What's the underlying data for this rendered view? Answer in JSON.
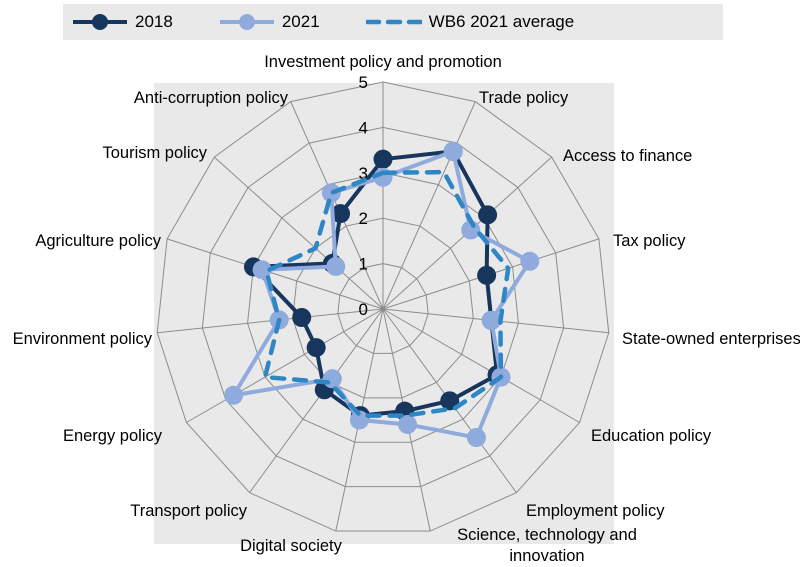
{
  "chart_data": {
    "type": "radar",
    "title": "",
    "scale": {
      "min": 0,
      "max": 5,
      "ring_step": 1,
      "ring_labels": [
        "0",
        "1",
        "2",
        "3",
        "4",
        "5"
      ]
    },
    "grid": true,
    "legend_position": "top",
    "categories": [
      "Investment policy and promotion",
      "Trade policy",
      "Access to finance",
      "Tax policy",
      "State-owned enterprises",
      "Education policy",
      "Employment policy",
      "Science, technology and\ninnovation",
      "Digital society",
      "Transport policy",
      "Energy policy",
      "Environment policy",
      "Agriculture policy",
      "Tourism policy",
      "Anti-corruption policy"
    ],
    "series": [
      {
        "name": "2018",
        "color": "#17365d",
        "style": "solid-dots",
        "values": [
          3.3,
          3.8,
          3.1,
          2.4,
          2.4,
          2.9,
          2.5,
          2.3,
          2.4,
          2.2,
          1.7,
          1.8,
          3.0,
          1.5,
          2.3
        ]
      },
      {
        "name": "2021",
        "color": "#8faadc",
        "style": "solid-dots",
        "values": [
          2.9,
          3.8,
          2.6,
          3.4,
          2.4,
          3.0,
          3.5,
          2.6,
          2.5,
          1.9,
          3.8,
          2.3,
          2.8,
          1.4,
          2.8
        ]
      },
      {
        "name": "WB6 2021 average",
        "color": "#2e86c5",
        "style": "dashed",
        "values": [
          3.0,
          3.3,
          2.7,
          2.9,
          2.6,
          3.0,
          2.7,
          2.4,
          2.4,
          2.0,
          3.0,
          2.3,
          2.7,
          2.0,
          2.8
        ]
      }
    ],
    "colors": {
      "plot_background": "#e9e9e9",
      "legend_background": "#e9e9e9",
      "gridline": "#8c8c8c",
      "text": "#000000"
    }
  }
}
